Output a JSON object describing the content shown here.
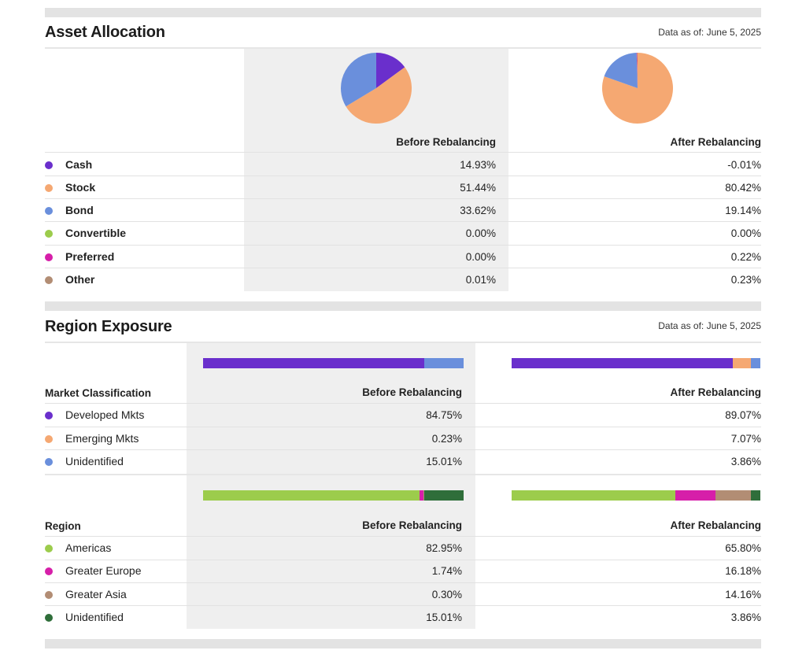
{
  "colors": {
    "cash": "#6a2fcc",
    "stock": "#f5a872",
    "bond": "#6a8fdc",
    "convertible": "#9ccc4c",
    "preferred": "#d61fa9",
    "other": "#b28d74",
    "developed": "#6a2fcc",
    "emerging": "#f5a872",
    "unidentified_market": "#6a8fdc",
    "americas": "#9ccc4c",
    "europe": "#d61fa9",
    "asia": "#b28d74",
    "unidentified_region": "#2f6e3a"
  },
  "asset_allocation": {
    "title": "Asset Allocation",
    "as_of": "Data as of: June 5, 2025",
    "col_before": "Before Rebalancing",
    "col_after": "After Rebalancing",
    "rows": [
      {
        "label": "Cash",
        "before": "14.93%",
        "after": "-0.01%"
      },
      {
        "label": "Stock",
        "before": "51.44%",
        "after": "80.42%"
      },
      {
        "label": "Bond",
        "before": "33.62%",
        "after": "19.14%"
      },
      {
        "label": "Convertible",
        "before": "0.00%",
        "after": "0.00%"
      },
      {
        "label": "Preferred",
        "before": "0.00%",
        "after": "0.22%"
      },
      {
        "label": "Other",
        "before": "0.01%",
        "after": "0.23%"
      }
    ]
  },
  "region_exposure": {
    "title": "Region Exposure",
    "as_of": "Data as of: June 5, 2025",
    "market": {
      "header": "Market Classification",
      "col_before": "Before Rebalancing",
      "col_after": "After Rebalancing",
      "rows": [
        {
          "label": "Developed Mkts",
          "before": "84.75%",
          "after": "89.07%"
        },
        {
          "label": "Emerging Mkts",
          "before": "0.23%",
          "after": "7.07%"
        },
        {
          "label": "Unidentified",
          "before": "15.01%",
          "after": "3.86%"
        }
      ]
    },
    "region": {
      "header": "Region",
      "col_before": "Before Rebalancing",
      "col_after": "After Rebalancing",
      "rows": [
        {
          "label": "Americas",
          "before": "82.95%",
          "after": "65.80%"
        },
        {
          "label": "Greater Europe",
          "before": "1.74%",
          "after": "16.18%"
        },
        {
          "label": "Greater Asia",
          "before": "0.30%",
          "after": "14.16%"
        },
        {
          "label": "Unidentified",
          "before": "15.01%",
          "after": "3.86%"
        }
      ]
    }
  },
  "chart_data": [
    {
      "type": "pie",
      "title": "Asset Allocation - Before Rebalancing",
      "categories": [
        "Cash",
        "Stock",
        "Bond",
        "Convertible",
        "Preferred",
        "Other"
      ],
      "values": [
        14.93,
        51.44,
        33.62,
        0.0,
        0.0,
        0.01
      ]
    },
    {
      "type": "pie",
      "title": "Asset Allocation - After Rebalancing",
      "categories": [
        "Cash",
        "Stock",
        "Bond",
        "Convertible",
        "Preferred",
        "Other"
      ],
      "values": [
        -0.01,
        80.42,
        19.14,
        0.0,
        0.22,
        0.23
      ]
    },
    {
      "type": "bar",
      "title": "Market Classification - Before Rebalancing",
      "categories": [
        "Developed Mkts",
        "Emerging Mkts",
        "Unidentified"
      ],
      "values": [
        84.75,
        0.23,
        15.01
      ]
    },
    {
      "type": "bar",
      "title": "Market Classification - After Rebalancing",
      "categories": [
        "Developed Mkts",
        "Emerging Mkts",
        "Unidentified"
      ],
      "values": [
        89.07,
        7.07,
        3.86
      ]
    },
    {
      "type": "bar",
      "title": "Region - Before Rebalancing",
      "categories": [
        "Americas",
        "Greater Europe",
        "Greater Asia",
        "Unidentified"
      ],
      "values": [
        82.95,
        1.74,
        0.3,
        15.01
      ]
    },
    {
      "type": "bar",
      "title": "Region - After Rebalancing",
      "categories": [
        "Americas",
        "Greater Europe",
        "Greater Asia",
        "Unidentified"
      ],
      "values": [
        65.8,
        16.18,
        14.16,
        3.86
      ]
    }
  ]
}
